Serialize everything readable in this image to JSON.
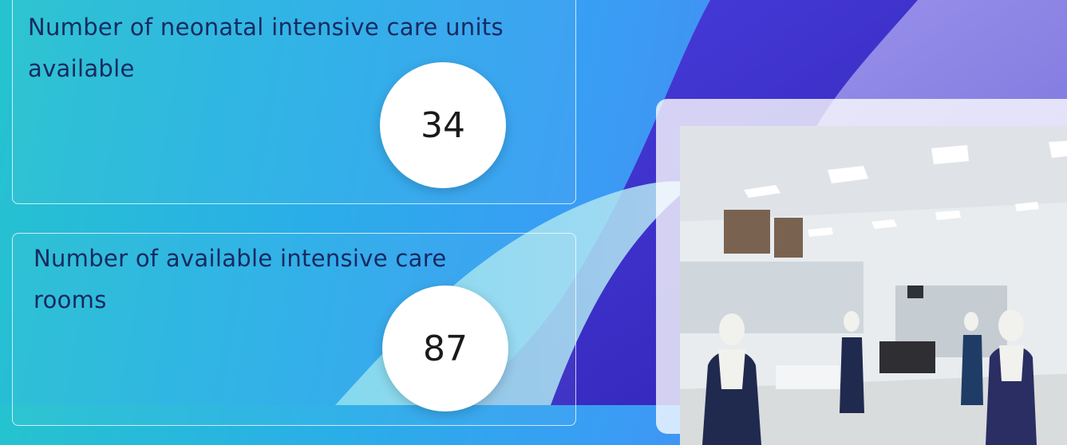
{
  "stats": [
    {
      "label": "Number of neonatal intensive care units available",
      "value": "34"
    },
    {
      "label": "Number of available intensive care rooms",
      "value": "87"
    }
  ],
  "image": {
    "description_icon": "hospital-icu-photo-icon"
  },
  "colors": {
    "background_start": "#25c3cf",
    "background_end": "#5b6fe0",
    "wave_indigo": "#3a2fc4",
    "wave_lavender": "#8d86e6",
    "text_navy": "#172a60",
    "circle_white": "#ffffff"
  }
}
